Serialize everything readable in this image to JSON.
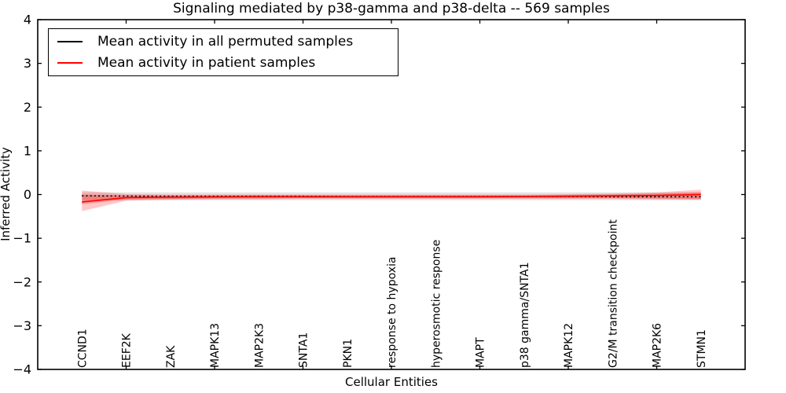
{
  "chart_data": {
    "type": "line",
    "title": "Signaling mediated by p38-gamma and p38-delta -- 569 samples",
    "xlabel": "Cellular Entities",
    "ylabel": "Inferred Activity",
    "ylim": [
      -4,
      4
    ],
    "yticks": [
      4,
      3,
      2,
      1,
      0,
      -1,
      -2,
      -3,
      -4
    ],
    "grid": false,
    "legend_position": "upper left",
    "categories": [
      "CCND1",
      "EEF2K",
      "ZAK",
      "MAPK13",
      "MAP2K3",
      "SNTA1",
      "PKN1",
      "response to hypoxia",
      "hyperosmotic response",
      "MAPT",
      "p38 gamma/SNTA1",
      "MAPK12",
      "G2/M transition checkpoint",
      "MAP2K6",
      "STMN1"
    ],
    "series": [
      {
        "name": "Mean activity in all permuted samples",
        "color": "#000000",
        "style": "dotted",
        "values": [
          -0.03,
          -0.035,
          -0.04,
          -0.04,
          -0.04,
          -0.04,
          -0.045,
          -0.045,
          -0.045,
          -0.045,
          -0.045,
          -0.045,
          -0.05,
          -0.05,
          -0.05
        ]
      },
      {
        "name": "Mean activity in patient samples",
        "color": "#ff0000",
        "style": "solid",
        "values": [
          -0.17,
          -0.07,
          -0.06,
          -0.055,
          -0.05,
          -0.05,
          -0.05,
          -0.05,
          -0.05,
          -0.05,
          -0.045,
          -0.04,
          -0.03,
          -0.02,
          0.0
        ]
      }
    ],
    "bands": [
      {
        "name": "permuted-samples-band",
        "color": "#000000",
        "opacity": 0.11,
        "upper": [
          0.05,
          0.05,
          0.05,
          0.05,
          0.05,
          0.05,
          0.05,
          0.05,
          0.05,
          0.05,
          0.05,
          0.05,
          0.05,
          0.05,
          0.05
        ],
        "lower": [
          -0.13,
          -0.13,
          -0.13,
          -0.13,
          -0.13,
          -0.13,
          -0.13,
          -0.13,
          -0.13,
          -0.13,
          -0.13,
          -0.13,
          -0.13,
          -0.13,
          -0.13
        ]
      },
      {
        "name": "patient-band-outer",
        "color": "#ff0000",
        "opacity": 0.22,
        "upper": [
          0.09,
          0.01,
          0.0,
          0.0,
          0.0,
          0.0,
          0.0,
          0.0,
          0.0,
          0.0,
          0.0,
          0.01,
          0.02,
          0.05,
          0.11
        ],
        "lower": [
          -0.38,
          -0.14,
          -0.12,
          -0.11,
          -0.11,
          -0.1,
          -0.1,
          -0.1,
          -0.1,
          -0.1,
          -0.1,
          -0.1,
          -0.1,
          -0.11,
          -0.12
        ]
      },
      {
        "name": "patient-band-inner",
        "color": "#ff0000",
        "opacity": 0.28,
        "upper": [
          0.0,
          -0.02,
          -0.02,
          -0.02,
          -0.02,
          -0.02,
          -0.02,
          -0.02,
          -0.02,
          -0.02,
          -0.02,
          -0.01,
          0.0,
          0.02,
          0.05
        ],
        "lower": [
          -0.22,
          -0.11,
          -0.1,
          -0.09,
          -0.09,
          -0.08,
          -0.08,
          -0.08,
          -0.08,
          -0.08,
          -0.08,
          -0.08,
          -0.08,
          -0.09,
          -0.1
        ]
      }
    ]
  },
  "legend": {
    "items": [
      {
        "label": "Mean activity in all permuted samples",
        "color": "#000000"
      },
      {
        "label": "Mean activity in patient samples",
        "color": "#ff0000"
      }
    ]
  }
}
